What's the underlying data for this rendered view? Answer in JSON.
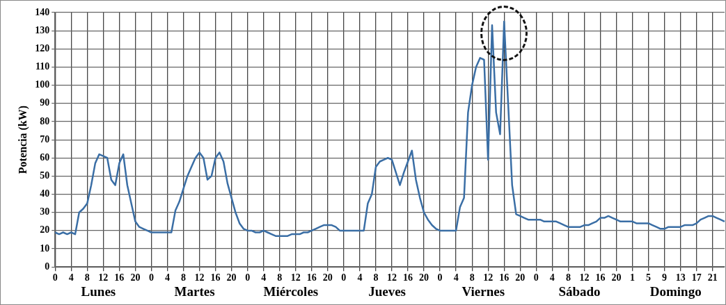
{
  "chart_data": {
    "type": "line",
    "ylabel": "Potencia (kW)",
    "color": "#3a6ea5",
    "grid": true,
    "annotations": [
      "Lunes",
      "Martes",
      "Miércoles",
      "Jueves",
      "Viernes",
      "Sábado",
      "Domingo"
    ],
    "categories": [
      "0",
      null,
      null,
      null,
      "4",
      null,
      null,
      null,
      "8",
      null,
      null,
      null,
      "12",
      null,
      null,
      null,
      "16",
      null,
      null,
      null,
      "20",
      null,
      null,
      null,
      "0",
      null,
      null,
      null,
      "4",
      null,
      null,
      null,
      "8",
      null,
      null,
      null,
      "12",
      null,
      null,
      null,
      "16",
      null,
      null,
      null,
      "20",
      null,
      null,
      null,
      "0",
      null,
      null,
      null,
      "4",
      null,
      null,
      null,
      "8",
      null,
      null,
      null,
      "12",
      null,
      null,
      null,
      "16",
      null,
      null,
      null,
      "20",
      null,
      null,
      null,
      "0",
      null,
      null,
      null,
      "4",
      null,
      null,
      null,
      "8",
      null,
      null,
      null,
      "12",
      null,
      null,
      null,
      "16",
      null,
      null,
      null,
      "20",
      null,
      null,
      null,
      "0",
      null,
      null,
      null,
      "4",
      null,
      null,
      null,
      "8",
      null,
      null,
      null,
      "12",
      null,
      null,
      null,
      "16",
      null,
      null,
      null,
      "20",
      null,
      null,
      null,
      "0",
      null,
      null,
      null,
      "4",
      null,
      null,
      null,
      "8",
      null,
      null,
      null,
      "12",
      null,
      null,
      null,
      "16",
      null,
      null,
      null,
      "20",
      null,
      null,
      null,
      "1",
      null,
      null,
      null,
      "5",
      null,
      null,
      null,
      "9",
      null,
      null,
      null,
      "13",
      null,
      null,
      null,
      "17",
      null,
      null,
      null,
      "21",
      null,
      null,
      null
    ],
    "values": [
      19,
      18,
      19,
      18,
      19,
      18,
      30,
      32,
      35,
      45,
      57,
      62,
      61,
      60,
      48,
      45,
      57,
      62,
      45,
      35,
      25,
      22,
      21,
      20,
      19,
      19,
      19,
      19,
      19,
      19,
      31,
      36,
      43,
      50,
      55,
      60,
      63,
      60,
      48,
      50,
      60,
      63,
      58,
      46,
      38,
      30,
      24,
      21,
      20,
      20,
      19,
      19,
      20,
      19,
      18,
      17,
      17,
      17,
      17,
      18,
      18,
      18,
      19,
      19,
      20,
      21,
      22,
      23,
      23,
      23,
      22,
      20,
      20,
      20,
      20,
      20,
      20,
      20,
      35,
      40,
      55,
      58,
      59,
      60,
      59,
      52,
      45,
      52,
      58,
      64,
      48,
      38,
      30,
      26,
      23,
      21,
      20,
      20,
      20,
      20,
      20,
      33,
      38,
      85,
      100,
      110,
      115,
      114,
      59,
      133,
      85,
      73,
      135,
      90,
      45,
      29,
      28,
      27,
      26,
      26,
      26,
      26,
      25,
      25,
      25,
      25,
      24,
      23,
      22,
      22,
      22,
      22,
      23,
      23,
      24,
      25,
      27,
      27,
      28,
      27,
      26,
      25,
      25,
      25,
      25,
      24,
      24,
      24,
      24,
      23,
      22,
      21,
      21,
      22,
      22,
      22,
      22,
      23,
      23,
      23,
      24,
      26,
      27,
      28,
      28,
      27,
      26,
      25
    ],
    "ylim": [
      0,
      140
    ],
    "yticks": [
      0,
      10,
      20,
      30,
      40,
      50,
      60,
      70,
      80,
      90,
      100,
      110,
      120,
      130,
      140
    ]
  }
}
